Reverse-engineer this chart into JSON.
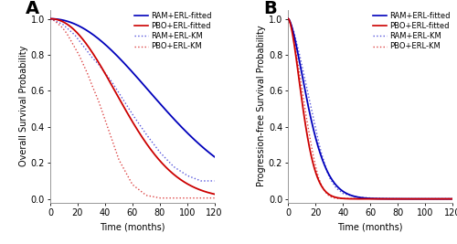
{
  "panel_A": {
    "label": "A",
    "ylabel": "Overall Survival Probability",
    "xlabel": "Time (months)",
    "xlim": [
      0,
      120
    ],
    "ylim": [
      -0.02,
      1.05
    ],
    "yticks": [
      0.0,
      0.2,
      0.4,
      0.6,
      0.8,
      1.0
    ],
    "xticks": [
      0,
      20,
      40,
      60,
      80,
      100,
      120
    ],
    "weibull_RAM": {
      "shape": 2.05,
      "scale": 100.0
    },
    "weibull_PBO": {
      "shape": 2.1,
      "scale": 65.0
    },
    "km_RAM": {
      "times": [
        0,
        3,
        6,
        9,
        12,
        15,
        18,
        21,
        24,
        27,
        30,
        35,
        40,
        45,
        50,
        55,
        60,
        70,
        80,
        90,
        100,
        110,
        120
      ],
      "surv": [
        1.0,
        0.99,
        0.98,
        0.97,
        0.95,
        0.93,
        0.91,
        0.88,
        0.85,
        0.82,
        0.79,
        0.75,
        0.7,
        0.65,
        0.59,
        0.53,
        0.47,
        0.36,
        0.26,
        0.18,
        0.13,
        0.1,
        0.1
      ]
    },
    "km_PBO": {
      "times": [
        0,
        3,
        6,
        9,
        12,
        15,
        18,
        21,
        24,
        27,
        30,
        35,
        40,
        45,
        50,
        60,
        70,
        80
      ],
      "surv": [
        1.0,
        0.99,
        0.97,
        0.95,
        0.92,
        0.88,
        0.84,
        0.8,
        0.75,
        0.7,
        0.64,
        0.55,
        0.44,
        0.33,
        0.22,
        0.08,
        0.02,
        0.005
      ]
    }
  },
  "panel_B": {
    "label": "B",
    "ylabel": "Progression-free Survival Probability",
    "xlabel": "Time (months)",
    "xlim": [
      0,
      120
    ],
    "ylim": [
      -0.02,
      1.05
    ],
    "yticks": [
      0.0,
      0.2,
      0.4,
      0.6,
      0.8,
      1.0
    ],
    "xticks": [
      0,
      20,
      40,
      60,
      80,
      100,
      120
    ],
    "weibull_RAM": {
      "shape": 1.55,
      "scale": 19.0
    },
    "weibull_PBO": {
      "shape": 1.65,
      "scale": 13.5
    },
    "km_RAM": {
      "times": [
        0,
        2,
        4,
        6,
        8,
        10,
        12,
        14,
        16,
        18,
        20,
        22,
        24,
        26,
        28,
        30,
        35,
        40,
        50,
        60,
        80,
        100,
        120
      ],
      "surv": [
        1.0,
        0.97,
        0.93,
        0.87,
        0.81,
        0.74,
        0.67,
        0.6,
        0.53,
        0.46,
        0.39,
        0.32,
        0.26,
        0.21,
        0.16,
        0.12,
        0.06,
        0.03,
        0.01,
        0.005,
        0.002,
        0.001,
        0.001
      ]
    },
    "km_PBO": {
      "times": [
        0,
        2,
        4,
        6,
        8,
        10,
        12,
        14,
        16,
        18,
        20,
        22,
        24,
        26,
        28,
        30,
        33,
        36
      ],
      "surv": [
        1.0,
        0.96,
        0.89,
        0.8,
        0.71,
        0.61,
        0.51,
        0.42,
        0.33,
        0.25,
        0.18,
        0.12,
        0.08,
        0.05,
        0.03,
        0.015,
        0.006,
        0.002
      ]
    }
  },
  "colors": {
    "RAM_fitted": "#0000bb",
    "PBO_fitted": "#cc0000",
    "RAM_KM": "#5555dd",
    "PBO_KM": "#dd4444"
  },
  "legend_labels": [
    "RAM+ERL-fitted",
    "PBO+ERL-fitted",
    "RAM+ERL-KM",
    "PBO+ERL-KM"
  ],
  "bg_color": "#ffffff",
  "panel_bg": "#ffffff",
  "fontsize_label": 7,
  "fontsize_tick": 7,
  "fontsize_legend": 6,
  "fontsize_panel_label": 14
}
